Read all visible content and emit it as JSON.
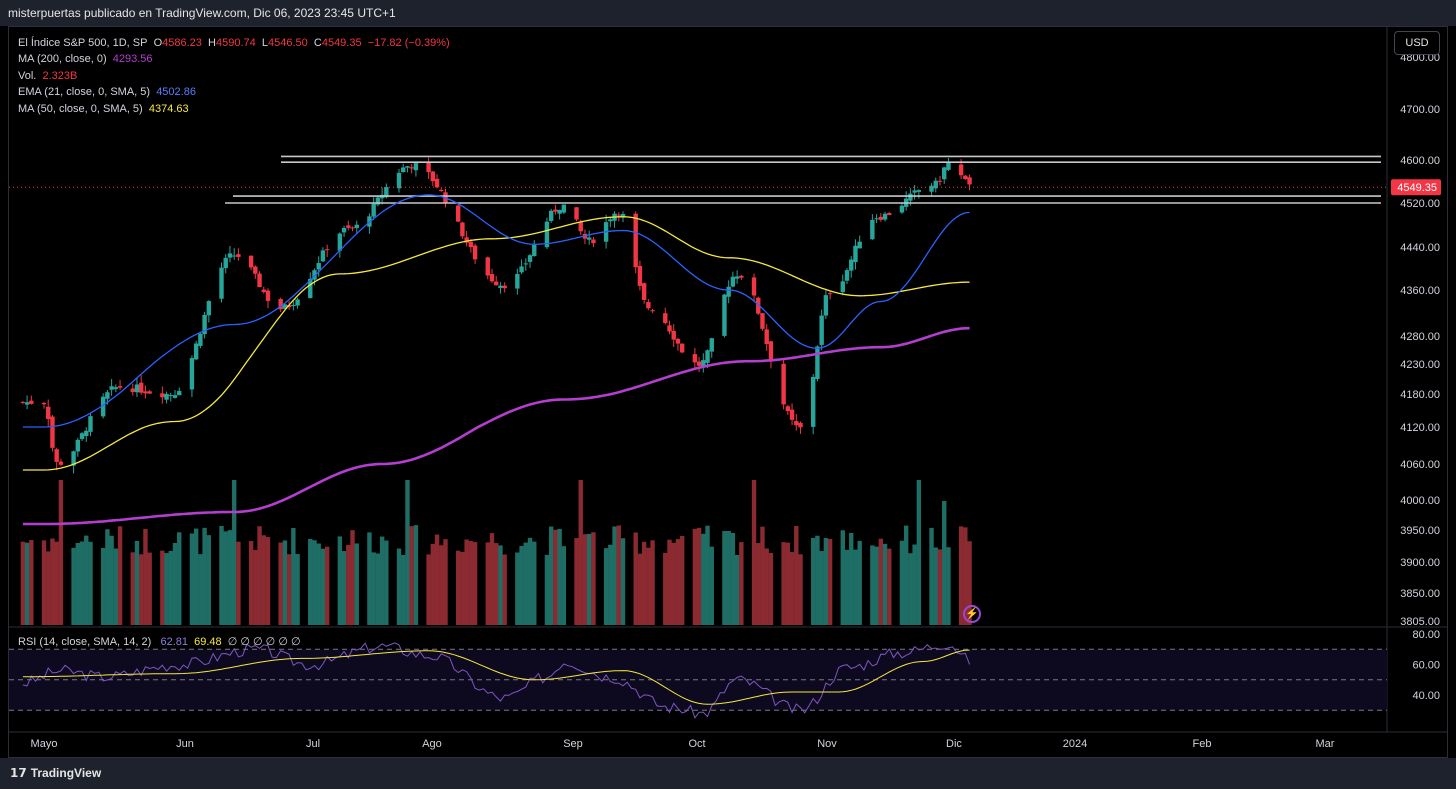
{
  "header": {
    "published": "misterpuertas publicado en TradingView.com, Dic 06, 2023 23:45 UTC+1"
  },
  "footer": {
    "brand": "TradingView",
    "logo_icon": "tradingview-logo-icon"
  },
  "toolbar": {
    "currency": "USD"
  },
  "legend": {
    "symbol": "El Índice S&P 500, 1D, SP",
    "o_label": "O",
    "o": "4586.23",
    "h_label": "H",
    "h": "4590.74",
    "l_label": "L",
    "l": "4546.50",
    "c_label": "C",
    "c": "4549.35",
    "change": "−17.82 (−0.39%)",
    "ma200_label": "MA (200, close, 0)",
    "ma200": "4293.56",
    "vol_label": "Vol.",
    "vol": "2.323B",
    "ema21_label": "EMA (21, close, 0, SMA, 5)",
    "ema21": "4502.86",
    "ma50_label": "MA (50, close, 0, SMA, 5)",
    "ma50": "4374.63"
  },
  "rsi_legend": {
    "label": "RSI (14, close, SMA, 14, 2)",
    "rsi": "62.81",
    "sma": "69.48",
    "zeros": "∅ ∅ ∅ ∅ ∅ ∅"
  },
  "colors": {
    "up": "#26a69a",
    "down": "#f23645",
    "ema": "#2962ff",
    "ma50": "#f5e83f",
    "ma200": "#b33ecf",
    "rsi": "#7e57c2",
    "rsi_sma": "#f5e83f"
  },
  "chart_data": {
    "type": "candlestick",
    "title": "El Índice S&P 500, 1D, SP",
    "price_axis": {
      "ticks": [
        "4800.00",
        "4700.00",
        "4600.00",
        "4520.00",
        "4440.00",
        "4360.00",
        "4280.00",
        "4230.00",
        "4180.00",
        "4120.00",
        "4060.00",
        "4000.00",
        "3950.00",
        "3900.00",
        "3850.00",
        "3805.00"
      ],
      "last_price": "4549.35"
    },
    "x_axis": {
      "ticks": [
        "Mayo",
        "Jun",
        "Jul",
        "Ago",
        "Sep",
        "Oct",
        "Nov",
        "Dic",
        "2024",
        "Feb",
        "Mar"
      ]
    },
    "horizontal_levels": [
      4607,
      4596,
      4533,
      4520
    ],
    "ohlc_anchors": [
      [
        "2023-05-01",
        4165
      ],
      [
        "2023-05-04",
        4061
      ],
      [
        "2023-05-19",
        4192
      ],
      [
        "2023-05-31",
        4180
      ],
      [
        "2023-06-15",
        4425
      ],
      [
        "2023-06-26",
        4328
      ],
      [
        "2023-07-12",
        4472
      ],
      [
        "2023-07-27",
        4590
      ],
      [
        "2023-08-18",
        4370
      ],
      [
        "2023-09-01",
        4515
      ],
      [
        "2023-09-07",
        4451
      ],
      [
        "2023-09-14",
        4505
      ],
      [
        "2023-09-21",
        4330
      ],
      [
        "2023-10-03",
        4229
      ],
      [
        "2023-10-12",
        4390
      ],
      [
        "2023-10-27",
        4117
      ],
      [
        "2023-11-03",
        4358
      ],
      [
        "2023-11-14",
        4495
      ],
      [
        "2023-11-28",
        4555
      ],
      [
        "2023-12-01",
        4594
      ],
      [
        "2023-12-04",
        4569
      ],
      [
        "2023-12-06",
        4549.35
      ]
    ],
    "ema21_anchors": [
      [
        "2023-05-01",
        4120
      ],
      [
        "2023-06-15",
        4300
      ],
      [
        "2023-07-31",
        4535
      ],
      [
        "2023-08-25",
        4445
      ],
      [
        "2023-09-15",
        4470
      ],
      [
        "2023-10-10",
        4360
      ],
      [
        "2023-10-31",
        4258
      ],
      [
        "2023-11-15",
        4340
      ],
      [
        "2023-12-06",
        4502.86
      ]
    ],
    "ma50_anchors": [
      [
        "2023-05-01",
        4050
      ],
      [
        "2023-06-01",
        4130
      ],
      [
        "2023-07-10",
        4390
      ],
      [
        "2023-08-15",
        4455
      ],
      [
        "2023-09-15",
        4495
      ],
      [
        "2023-10-10",
        4420
      ],
      [
        "2023-11-10",
        4350
      ],
      [
        "2023-12-06",
        4374.63
      ]
    ],
    "ma200_anchors": [
      [
        "2023-05-01",
        3960
      ],
      [
        "2023-06-15",
        3980
      ],
      [
        "2023-07-20",
        4060
      ],
      [
        "2023-09-01",
        4170
      ],
      [
        "2023-10-15",
        4235
      ],
      [
        "2023-11-15",
        4260
      ],
      [
        "2023-12-06",
        4293.56
      ]
    ],
    "volume": {
      "last": "2.323B"
    },
    "rsi": {
      "levels": [
        70,
        50,
        30
      ],
      "ticks": [
        "80.00",
        "60.00",
        "40.00"
      ],
      "last": 62.81,
      "sma_last": 69.48
    }
  }
}
